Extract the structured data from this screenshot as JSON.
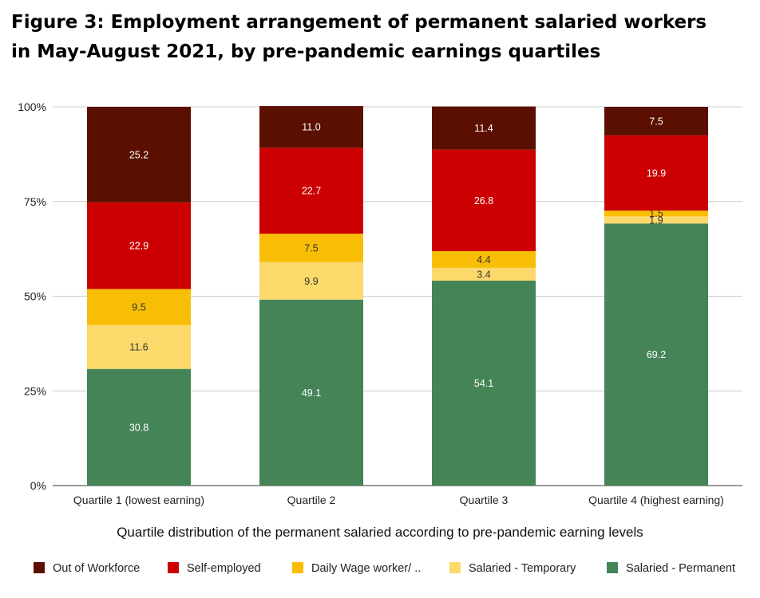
{
  "title": "Figure 3: Employment arrangement of permanent salaried workers in May-August 2021, by pre-pandemic earnings quartiles",
  "chart_data": {
    "type": "bar",
    "stacked": true,
    "title": "Figure 3: Employment arrangement of permanent salaried workers in May-August 2021, by pre-pandemic earnings quartiles",
    "xlabel": "Quartile distribution of the permanent salaried according to pre-pandemic earning levels",
    "ylabel": "",
    "ylim": [
      0,
      100
    ],
    "yticks": [
      "0%",
      "25%",
      "50%",
      "75%",
      "100%"
    ],
    "grid": true,
    "legend_position": "bottom",
    "categories": [
      "Quartile 1 (lowest earning)",
      "Quartile 2",
      "Quartile 3",
      "Quartile 4 (highest earning)"
    ],
    "series": [
      {
        "name": "Salaried - Permanent",
        "color": "#458457",
        "values": [
          30.8,
          49.1,
          54.1,
          69.2
        ]
      },
      {
        "name": "Salaried - Temporary",
        "color": "#fcd96a",
        "values": [
          11.6,
          9.9,
          3.4,
          1.9
        ]
      },
      {
        "name": "Daily Wage worker/ ..",
        "color": "#f8bd05",
        "values": [
          9.5,
          7.5,
          4.4,
          1.5
        ]
      },
      {
        "name": "Self-employed",
        "color": "#cc0000",
        "values": [
          22.9,
          22.7,
          26.8,
          19.9
        ]
      },
      {
        "name": "Out of Workforce",
        "color": "#5b0f00",
        "values": [
          25.2,
          11.0,
          11.4,
          7.5
        ]
      }
    ],
    "legend_order": [
      "Out of Workforce",
      "Self-employed",
      "Daily Wage worker/ ..",
      "Salaried - Temporary",
      "Salaried - Permanent"
    ]
  }
}
